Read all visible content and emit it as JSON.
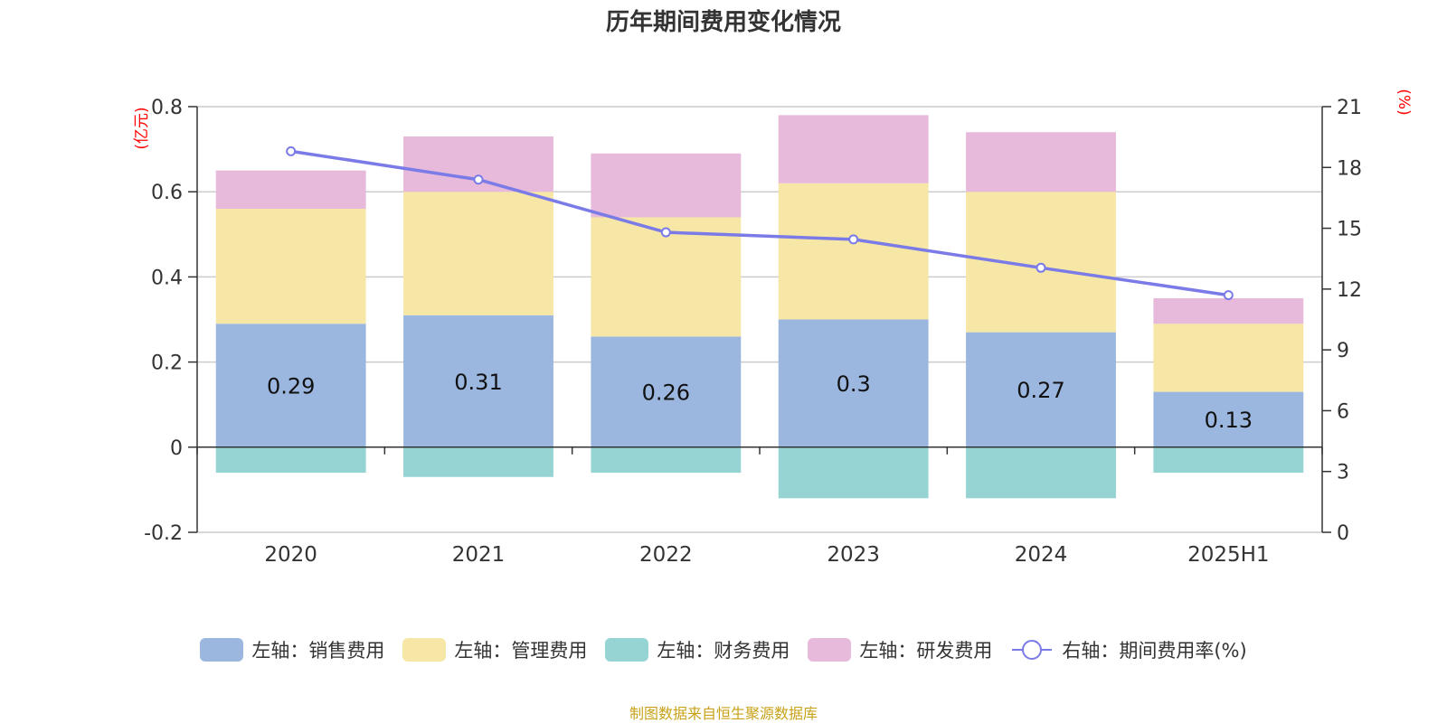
{
  "chart_data": {
    "type": "bar",
    "title": "历年期间费用变化情况",
    "categories": [
      "2020",
      "2021",
      "2022",
      "2023",
      "2024",
      "2025H1"
    ],
    "left_axis": {
      "unit_label": "(亿元)",
      "ylim": [
        -0.2,
        0.8
      ],
      "ticks": [
        "0.8",
        "0.6",
        "0.4",
        "0.2",
        "0",
        "-0.2"
      ],
      "tick_values": [
        0.8,
        0.6,
        0.4,
        0.2,
        0,
        -0.2
      ]
    },
    "right_axis": {
      "unit_label": "(%)",
      "ylim": [
        0,
        21
      ],
      "ticks": [
        "21",
        "18",
        "15",
        "12",
        "9",
        "6",
        "3",
        "0"
      ],
      "tick_values": [
        21,
        18,
        15,
        12,
        9,
        6,
        3,
        0
      ]
    },
    "series": [
      {
        "name": "左轴：销售费用",
        "type": "bar",
        "stack": true,
        "color": "#9bb7e0",
        "values": [
          0.29,
          0.31,
          0.26,
          0.3,
          0.27,
          0.13
        ],
        "labels": [
          "0.29",
          "0.31",
          "0.26",
          "0.3",
          "0.27",
          "0.13"
        ]
      },
      {
        "name": "左轴：管理费用",
        "type": "bar",
        "stack": true,
        "color": "#f7e7a6",
        "values": [
          0.27,
          0.29,
          0.28,
          0.32,
          0.33,
          0.16
        ]
      },
      {
        "name": "左轴：财务费用",
        "type": "bar",
        "stack": true,
        "color": "#96d4d3",
        "values": [
          -0.06,
          -0.07,
          -0.06,
          -0.12,
          -0.12,
          -0.06
        ]
      },
      {
        "name": "左轴：研发费用",
        "type": "bar",
        "stack": true,
        "color": "#e7b9da",
        "values": [
          0.09,
          0.13,
          0.15,
          0.16,
          0.14,
          0.06
        ]
      },
      {
        "name": "右轴：期间费用率(%)",
        "type": "line",
        "axis": "right",
        "color": "#7b7be8",
        "values": [
          18.8,
          17.4,
          14.8,
          14.45,
          13.05,
          11.7
        ]
      }
    ],
    "grid": true,
    "legend_position": "bottom"
  },
  "source_note": "制图数据来自恒生聚源数据库",
  "colors": {
    "axis_unit": "#ff0000",
    "grid": "#cccccc",
    "source_note": "#c8a21a"
  }
}
